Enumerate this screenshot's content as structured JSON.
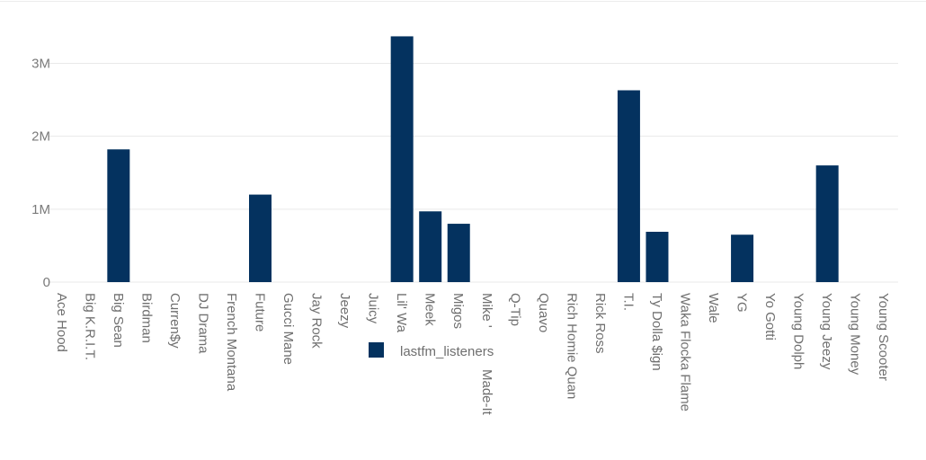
{
  "chart_data": {
    "type": "bar",
    "categories": [
      "Ace Hood",
      "Big K.R.I.T.",
      "Big Sean",
      "Birdman",
      "Curren$y",
      "DJ Drama",
      "French Montana",
      "Future",
      "Gucci Mane",
      "Jay Rock",
      "Jeezy",
      "Juicy",
      "Lil' Wa",
      "Meek",
      "Migos",
      "Mike '",
      "Q-Tip",
      "Quavo",
      "Rich Homie Quan",
      "Rick Ross",
      "T.I.",
      "Ty Dolla $ign",
      "Waka Flocka Flame",
      "Wale",
      "YG",
      "Yo Gotti",
      "Young Dolph",
      "Young Jeezy",
      "Young Money",
      "Young Scooter"
    ],
    "series": [
      {
        "name": "lastfm_listeners",
        "values": [
          0,
          0,
          1820000,
          0,
          0,
          0,
          0,
          1200000,
          0,
          0,
          0,
          0,
          3370000,
          970000,
          800000,
          0,
          0,
          0,
          0,
          0,
          2630000,
          690000,
          0,
          0,
          650000,
          0,
          0,
          1600000,
          0,
          0
        ],
        "color": "#04325f"
      }
    ],
    "ylim": [
      0,
      3400000
    ],
    "yticks": [
      0,
      1000000,
      2000000,
      3000000
    ],
    "ytick_labels": [
      "0",
      "1M",
      "2M",
      "3M"
    ],
    "grid": true,
    "legend": "inside-bottom-center",
    "extra_tick_labels": [
      "Made-It"
    ]
  }
}
